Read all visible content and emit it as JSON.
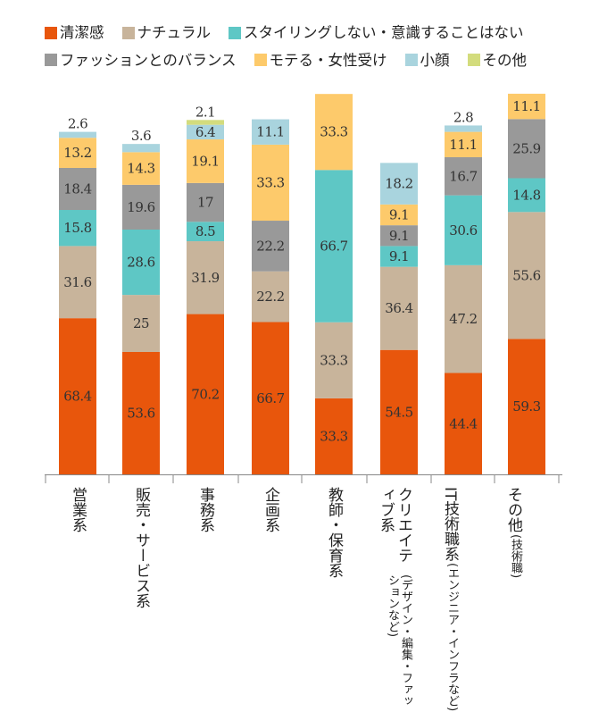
{
  "chart_data": {
    "type": "bar",
    "stacked": true,
    "legend_position": "top",
    "grid": false,
    "ylim": [
      0,
      166.7
    ],
    "categories": [
      {
        "label": "営業系",
        "sub": ""
      },
      {
        "label": "販売・サービス系",
        "sub": ""
      },
      {
        "label": "事務系",
        "sub": ""
      },
      {
        "label": "企画系",
        "sub": ""
      },
      {
        "label": "教師・保育系",
        "sub": ""
      },
      {
        "label": "クリエイティブ系",
        "sub": "(デザイン・編集・ファッションなど)"
      },
      {
        "label": "IT技術職系",
        "sub": "(エンジニア・インフラなど)"
      },
      {
        "label": "その他",
        "sub": "(技術職)"
      }
    ],
    "series": [
      {
        "name": "清潔感",
        "color": "#e8560c",
        "values": [
          68.4,
          53.6,
          70.2,
          66.7,
          33.3,
          54.5,
          44.4,
          59.3
        ]
      },
      {
        "name": "ナチュラル",
        "color": "#c8b49b",
        "values": [
          31.6,
          25,
          31.9,
          22.2,
          33.3,
          36.4,
          47.2,
          55.6
        ]
      },
      {
        "name": "スタイリングしない・意識することはない",
        "color": "#5ec7c5",
        "values": [
          15.8,
          28.6,
          8.5,
          null,
          66.7,
          9.1,
          30.6,
          14.8
        ]
      },
      {
        "name": "ファッションとのバランス",
        "color": "#999999",
        "values": [
          18.4,
          19.6,
          17,
          22.2,
          null,
          9.1,
          16.7,
          25.9
        ]
      },
      {
        "name": "モテる・女性受け",
        "color": "#fdca6b",
        "values": [
          13.2,
          14.3,
          19.1,
          33.3,
          33.3,
          9.1,
          11.1,
          11.1
        ]
      },
      {
        "name": "小顔",
        "color": "#a9d4de",
        "values": [
          2.6,
          3.6,
          6.4,
          11.1,
          null,
          18.2,
          2.8,
          null
        ]
      },
      {
        "name": "その他",
        "color": "#d3dc7d",
        "values": [
          null,
          null,
          2.1,
          null,
          null,
          null,
          null,
          null
        ]
      }
    ]
  }
}
